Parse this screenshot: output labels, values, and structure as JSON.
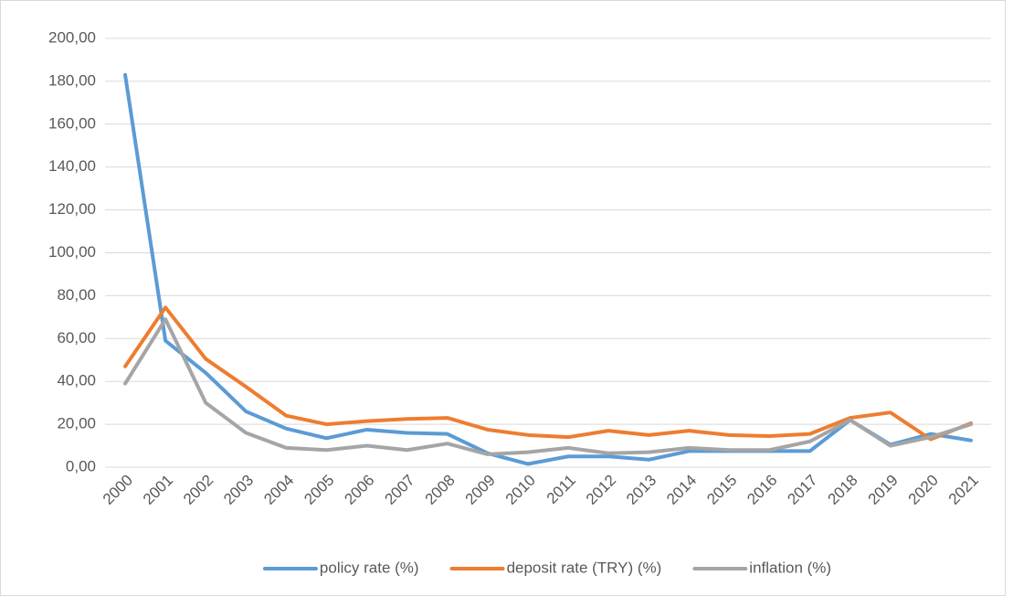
{
  "chart_data": {
    "type": "line",
    "categories": [
      "2000",
      "2001",
      "2002",
      "2003",
      "2004",
      "2005",
      "2006",
      "2007",
      "2008",
      "2009",
      "2010",
      "2011",
      "2012",
      "2013",
      "2014",
      "2015",
      "2016",
      "2017",
      "2018",
      "2019",
      "2020",
      "2021"
    ],
    "series": [
      {
        "name": "policy rate (%)",
        "color": "#5b9bd5",
        "values": [
          183,
          59,
          44,
          26,
          18,
          13.5,
          17.5,
          16,
          15.5,
          6.5,
          1.5,
          5,
          5,
          3.5,
          7.5,
          7.5,
          7.5,
          7.5,
          22,
          10.5,
          15.5,
          12.5
        ]
      },
      {
        "name": "deposit rate (TRY) (%)",
        "color": "#ed7d31",
        "values": [
          47,
          74.5,
          50.5,
          37.5,
          24,
          20,
          21.5,
          22.5,
          23,
          17.5,
          15,
          14,
          17,
          15,
          17,
          15,
          14.5,
          15.5,
          23,
          25.5,
          13,
          20.5
        ]
      },
      {
        "name": "inflation (%)",
        "color": "#a5a5a5",
        "values": [
          39,
          69,
          30,
          16,
          9,
          8,
          10,
          8,
          11,
          6,
          7,
          9,
          6.5,
          7,
          9,
          8,
          8,
          12,
          22,
          10,
          14,
          20
        ]
      }
    ],
    "ylim": [
      0,
      200
    ],
    "yticks": [
      {
        "value": 0,
        "label": "0,00"
      },
      {
        "value": 20,
        "label": "20,00"
      },
      {
        "value": 40,
        "label": "40,00"
      },
      {
        "value": 60,
        "label": "60,00"
      },
      {
        "value": 80,
        "label": "80,00"
      },
      {
        "value": 100,
        "label": "100,00"
      },
      {
        "value": 120,
        "label": "120,00"
      },
      {
        "value": 140,
        "label": "140,00"
      },
      {
        "value": 160,
        "label": "160,00"
      },
      {
        "value": 180,
        "label": "180,00"
      },
      {
        "value": 200,
        "label": "200,00"
      }
    ],
    "grid": true,
    "legend": "bottom"
  }
}
